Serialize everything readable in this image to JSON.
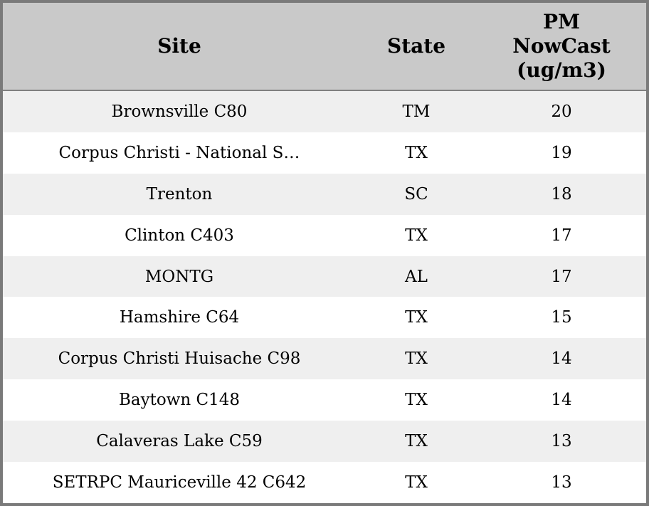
{
  "table": {
    "columns": [
      {
        "key": "site",
        "label": "Site"
      },
      {
        "key": "state",
        "label": "State"
      },
      {
        "key": "pm",
        "label": "PM\nNowCast\n(ug/m3)"
      }
    ],
    "rows": [
      {
        "site": "Brownsville C80",
        "state": "TM",
        "pm": "20"
      },
      {
        "site": "Corpus Christi - National S…",
        "state": "TX",
        "pm": "19"
      },
      {
        "site": "Trenton",
        "state": "SC",
        "pm": "18"
      },
      {
        "site": "Clinton C403",
        "state": "TX",
        "pm": "17"
      },
      {
        "site": "MONTG",
        "state": "AL",
        "pm": "17"
      },
      {
        "site": "Hamshire C64",
        "state": "TX",
        "pm": "15"
      },
      {
        "site": "Corpus Christi Huisache C98",
        "state": "TX",
        "pm": "14"
      },
      {
        "site": "Baytown C148",
        "state": "TX",
        "pm": "14"
      },
      {
        "site": "Calaveras Lake C59",
        "state": "TX",
        "pm": "13"
      },
      {
        "site": "SETRPC Mauriceville 42 C642",
        "state": "TX",
        "pm": "13"
      }
    ]
  },
  "chart_data": {
    "type": "table",
    "title": "",
    "columns": [
      "Site",
      "State",
      "PM NowCast (ug/m3)"
    ],
    "rows": [
      [
        "Brownsville C80",
        "TM",
        20
      ],
      [
        "Corpus Christi - National S…",
        "TX",
        19
      ],
      [
        "Trenton",
        "SC",
        18
      ],
      [
        "Clinton C403",
        "TX",
        17
      ],
      [
        "MONTG",
        "AL",
        17
      ],
      [
        "Hamshire C64",
        "TX",
        15
      ],
      [
        "Corpus Christi Huisache C98",
        "TX",
        14
      ],
      [
        "Baytown C148",
        "TX",
        14
      ],
      [
        "Calaveras Lake C59",
        "TX",
        13
      ],
      [
        "SETRPC Mauriceville 42 C642",
        "TX",
        13
      ]
    ]
  },
  "colors": {
    "header_bg": "#c9c9c9",
    "row_odd_bg": "#efefef",
    "row_even_bg": "#ffffff",
    "border": "#7a7a7a",
    "text": "#000000"
  }
}
